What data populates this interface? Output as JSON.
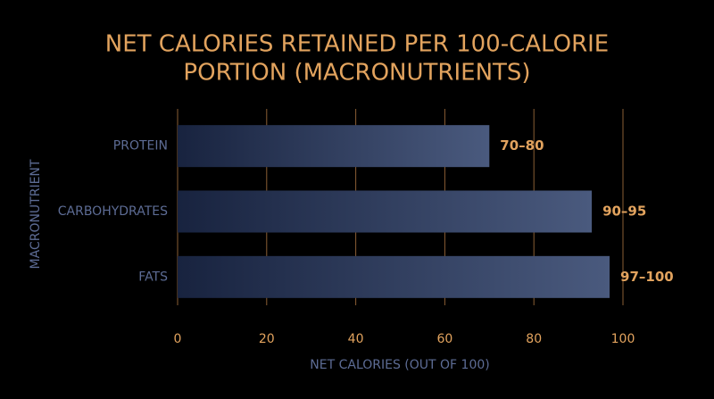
{
  "chart_data": {
    "type": "hbar",
    "title": [
      "NET CALORIES RETAINED PER 100-CALORIE",
      "PORTION (MACRONUTRIENTS)"
    ],
    "x_label": "NET CALORIES (OUT OF 100)",
    "y_label": "MACRONUTRIENT",
    "categories": [
      "PROTEIN",
      "CARBOHYDRATES",
      "FATS"
    ],
    "values": [
      70,
      93,
      97
    ],
    "value_labels": [
      "70–80",
      "90–95",
      "97–100"
    ],
    "color": "#4a5a7e",
    "xlim": [
      0,
      100
    ],
    "xticks": [
      0,
      20,
      40,
      60,
      80,
      100
    ],
    "grid": true
  }
}
